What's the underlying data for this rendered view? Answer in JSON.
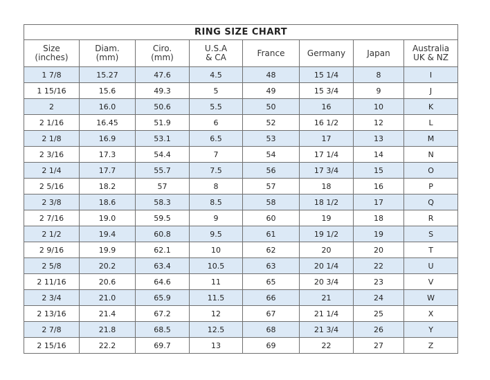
{
  "title": "RING SIZE CHART",
  "headers": [
    [
      "Size",
      "(inches)"
    ],
    [
      "Diam.",
      "(mm)"
    ],
    [
      "Ciro.",
      "(mm)"
    ],
    [
      "U.S.A",
      "& CA"
    ],
    [
      "France",
      ""
    ],
    [
      "Germany",
      ""
    ],
    [
      "Japan",
      ""
    ],
    [
      "Australia",
      "UK & NZ"
    ]
  ],
  "shade_color": "#dce9f6",
  "rows": [
    [
      "1 7/8",
      "15.27",
      "47.6",
      "4.5",
      "48",
      "15 1/4",
      "8",
      "I"
    ],
    [
      "1 15/16",
      "15.6",
      "49.3",
      "5",
      "49",
      "15 3/4",
      "9",
      "J"
    ],
    [
      "2",
      "16.0",
      "50.6",
      "5.5",
      "50",
      "16",
      "10",
      "K"
    ],
    [
      "2 1/16",
      "16.45",
      "51.9",
      "6",
      "52",
      "16 1/2",
      "12",
      "L"
    ],
    [
      "2 1/8",
      "16.9",
      "53.1",
      "6.5",
      "53",
      "17",
      "13",
      "M"
    ],
    [
      "2 3/16",
      "17.3",
      "54.4",
      "7",
      "54",
      "17 1/4",
      "14",
      "N"
    ],
    [
      "2 1/4",
      "17.7",
      "55.7",
      "7.5",
      "56",
      "17 3/4",
      "15",
      "O"
    ],
    [
      "2 5/16",
      "18.2",
      "57",
      "8",
      "57",
      "18",
      "16",
      "P"
    ],
    [
      "2 3/8",
      "18.6",
      "58.3",
      "8.5",
      "58",
      "18 1/2",
      "17",
      "Q"
    ],
    [
      "2 7/16",
      "19.0",
      "59.5",
      "9",
      "60",
      "19",
      "18",
      "R"
    ],
    [
      "2 1/2",
      "19.4",
      "60.8",
      "9.5",
      "61",
      "19 1/2",
      "19",
      "S"
    ],
    [
      "2 9/16",
      "19.9",
      "62.1",
      "10",
      "62",
      "20",
      "20",
      "T"
    ],
    [
      "2 5/8",
      "20.2",
      "63.4",
      "10.5",
      "63",
      "20 1/4",
      "22",
      "U"
    ],
    [
      "2 11/16",
      "20.6",
      "64.6",
      "11",
      "65",
      "20 3/4",
      "23",
      "V"
    ],
    [
      "2 3/4",
      "21.0",
      "65.9",
      "11.5",
      "66",
      "21",
      "24",
      "W"
    ],
    [
      "2 13/16",
      "21.4",
      "67.2",
      "12",
      "67",
      "21 1/4",
      "25",
      "X"
    ],
    [
      "2 7/8",
      "21.8",
      "68.5",
      "12.5",
      "68",
      "21 3/4",
      "26",
      "Y"
    ],
    [
      "2 15/16",
      "22.2",
      "69.7",
      "13",
      "69",
      "22",
      "27",
      "Z"
    ]
  ]
}
